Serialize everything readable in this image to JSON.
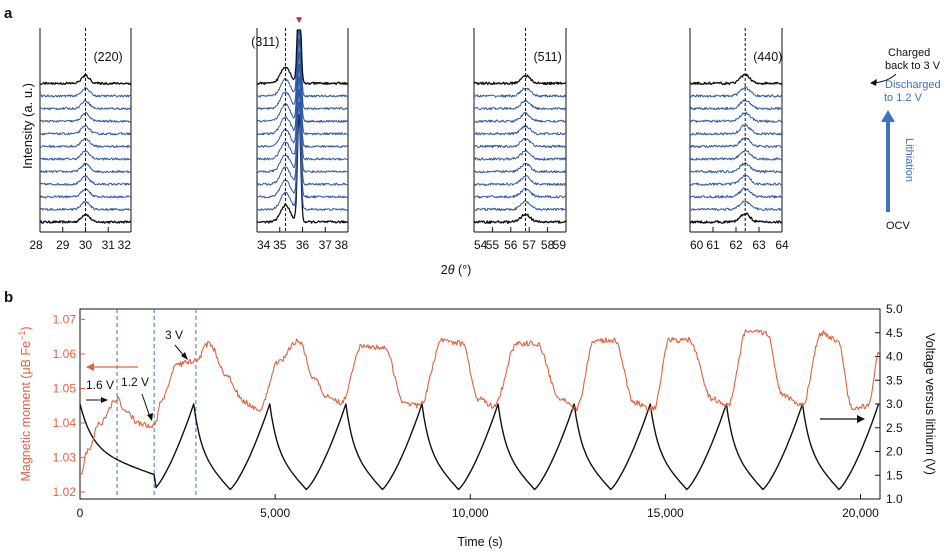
{
  "colors": {
    "black": "#111111",
    "blue": "#2f5aa8",
    "orange": "#e0633f",
    "arrow_blue": "#3f72c0",
    "marker_red": "#e02020"
  },
  "chart_data": [
    {
      "id": "a",
      "panel_label": "a",
      "type": "line",
      "title": "",
      "xlabel": "2θ (°)",
      "xlabel_main": "2",
      "xlabel_theta": "θ",
      "xlabel_unit": " (°)",
      "ylabel": "Intensity (a. u.)",
      "n_traces": 12,
      "trace_colors": [
        "#111111",
        "#2f5aa8",
        "#2f5aa8",
        "#2f5aa8",
        "#2f5aa8",
        "#2f5aa8",
        "#2f5aa8",
        "#2f5aa8",
        "#2f5aa8",
        "#2f5aa8",
        "#2f5aa8",
        "#111111"
      ],
      "subpanels": [
        {
          "name": "220",
          "peak_label": "(220)",
          "xlim": [
            28,
            32
          ],
          "ticks": [
            28,
            29,
            30,
            31,
            32
          ],
          "peak_center": 30.0,
          "peak_width": 0.25,
          "peak_height": 0.65,
          "noise": 0.18
        },
        {
          "name": "311",
          "peak_label": "(311)",
          "xlim": [
            34,
            38
          ],
          "ticks": [
            34,
            35,
            36,
            37,
            38
          ],
          "peak_center": 35.25,
          "peak_width": 0.3,
          "peak_height": 1.4,
          "noise": 0.18,
          "substrate_peak": {
            "center": 35.85,
            "width": 0.1,
            "height": 9,
            "marker": "▼"
          }
        },
        {
          "name": "511",
          "peak_label": "(511)",
          "xlim": [
            54,
            59
          ],
          "ticks": [
            54,
            55,
            56,
            57,
            58,
            59
          ],
          "peak_center": 56.8,
          "peak_width": 0.35,
          "peak_height": 0.65,
          "noise": 0.2
        },
        {
          "name": "440",
          "peak_label": "(440)",
          "xlim": [
            60,
            64
          ],
          "ticks": [
            60,
            61,
            62,
            63,
            64
          ],
          "peak_center": 62.4,
          "peak_width": 0.3,
          "peak_height": 0.7,
          "noise": 0.2
        }
      ],
      "annotations": {
        "charged_line1": "Charged",
        "charged_line2": "back to 3 V",
        "discharged_line1": "Discharged",
        "discharged_line2": "to 1.2 V",
        "lithiation": "Lithiation",
        "ocv": "OCV"
      }
    },
    {
      "id": "b",
      "panel_label": "b",
      "type": "line",
      "title": "",
      "xlabel": "Time (s)",
      "xlim": [
        0,
        20500
      ],
      "xticks": [
        0,
        5000,
        10000,
        15000,
        20000
      ],
      "xtick_labels": [
        "0",
        "5,000",
        "10,000",
        "15,000",
        "20,000"
      ],
      "ylabel_left": "Magnetic moment (μB Fe⁻¹)",
      "ylabel_left_main": "Magnetic moment (μB Fe",
      "ylabel_left_sup": "−1",
      "ylabel_left_end": ")",
      "ylim_left": [
        1.018,
        1.073
      ],
      "yticks_left": [
        1.02,
        1.03,
        1.04,
        1.05,
        1.06,
        1.07
      ],
      "ylabel_right": "Voltage versus lithium (V)",
      "ylim_right": [
        1.0,
        5.0
      ],
      "yticks_right": [
        1.0,
        1.5,
        2.0,
        2.5,
        3.0,
        3.5,
        4.0,
        4.5,
        5.0
      ],
      "dashed_lines_x": [
        950,
        1900,
        2970
      ],
      "series": [
        {
          "name": "Magnetic moment",
          "axis": "left",
          "color": "#e0633f",
          "x": [
            0,
            200,
            500,
            950,
            1200,
            1500,
            1900,
            2100,
            2500,
            2970,
            3300,
            3800,
            4200,
            4600,
            5100,
            5600,
            6000,
            6300,
            6700,
            7200,
            7800,
            8300,
            8700,
            9300,
            9800,
            10200,
            10600,
            11200,
            11700,
            12300,
            12700,
            13200,
            13700,
            14200,
            14700,
            15100,
            15600,
            16200,
            16600,
            17100,
            17600,
            18000,
            18500,
            19000,
            19400,
            19800,
            20200,
            20500
          ],
          "values": [
            1.025,
            1.032,
            1.04,
            1.047,
            1.043,
            1.04,
            1.039,
            1.047,
            1.057,
            1.058,
            1.063,
            1.053,
            1.046,
            1.044,
            1.058,
            1.064,
            1.053,
            1.048,
            1.046,
            1.062,
            1.062,
            1.046,
            1.045,
            1.064,
            1.063,
            1.047,
            1.045,
            1.063,
            1.063,
            1.047,
            1.044,
            1.064,
            1.064,
            1.046,
            1.044,
            1.064,
            1.064,
            1.047,
            1.045,
            1.067,
            1.066,
            1.048,
            1.045,
            1.066,
            1.064,
            1.044,
            1.045,
            1.061
          ]
        },
        {
          "name": "Voltage",
          "axis": "right",
          "color": "#111111",
          "cycle_period": 1950,
          "first_discharge": {
            "t0": 0,
            "t1": 1900,
            "v0": 3.0,
            "v1": 1.2
          },
          "cycle_start": 1900,
          "v_min": 1.2,
          "v_max": 3.0,
          "end_voltage": 3.0
        }
      ],
      "annotations": {
        "v16": "1.6 V",
        "v12": "1.2 V",
        "v3": "3 V"
      }
    }
  ]
}
